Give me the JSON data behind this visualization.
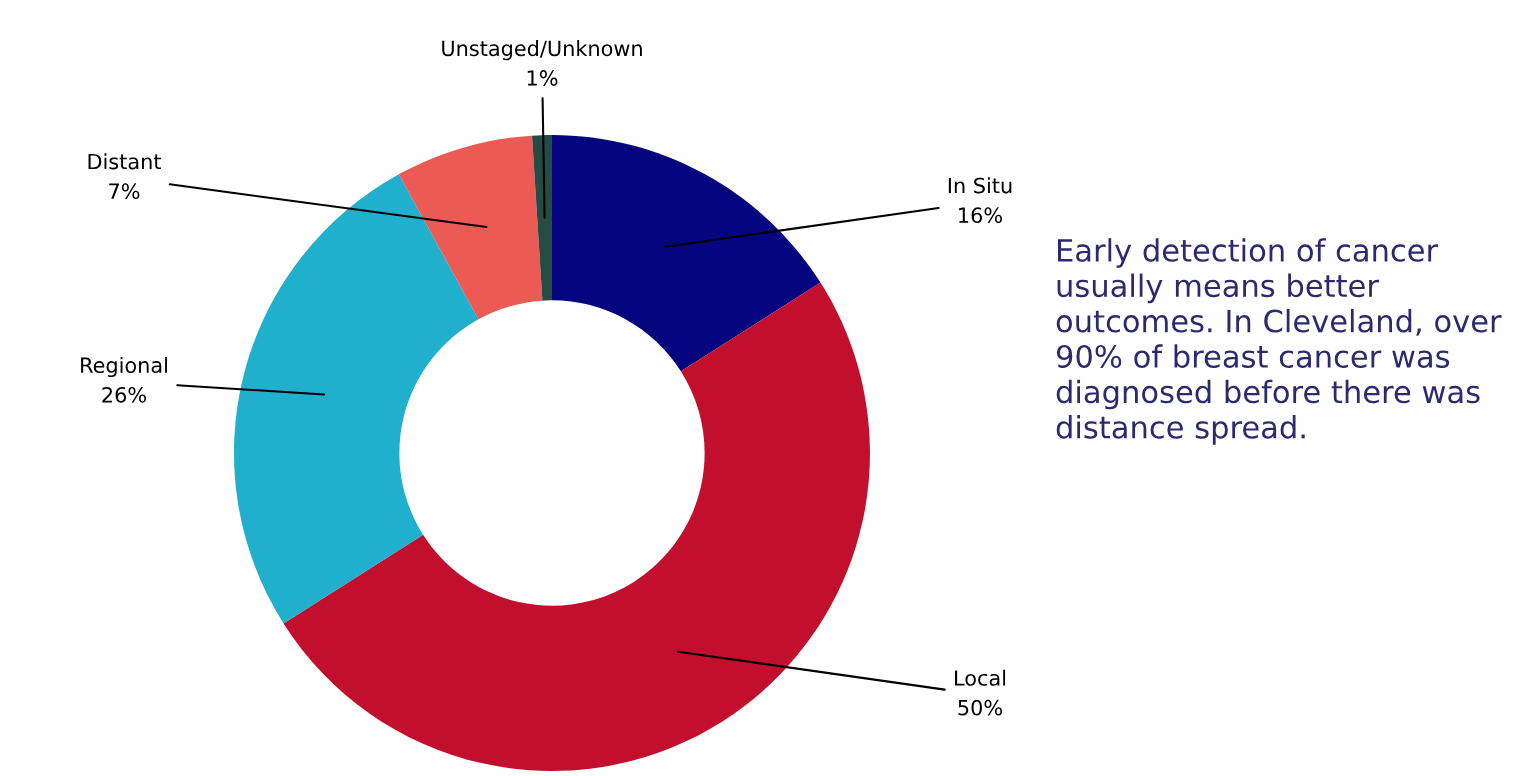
{
  "chart_data": {
    "type": "donut",
    "categories": [
      "In Situ",
      "Local",
      "Regional",
      "Distant",
      "Unstaged/Unknown"
    ],
    "values": [
      16,
      50,
      26,
      7,
      1
    ],
    "value_labels": [
      "16%",
      "50%",
      "26%",
      "7%",
      "1%"
    ],
    "colors": [
      "#050580",
      "#c20f2e",
      "#20afcc",
      "#ec5a55",
      "#244c44"
    ],
    "annotations": [
      "Early detection of cancer usually means better outcomes. In Cleveland, over 90% of breast cancer was diagnosed before there was distance spread."
    ],
    "legend": false
  }
}
